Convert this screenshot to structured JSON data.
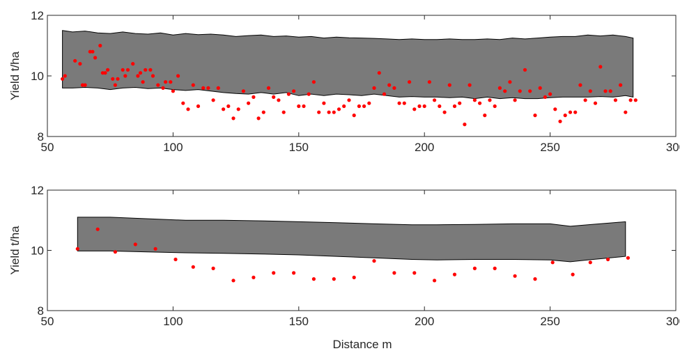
{
  "figure": {
    "xlabel": "Distance m"
  },
  "colors": {
    "band_fill": "#7a7a7a",
    "band_stroke": "#000000",
    "points": "#ff0000",
    "axis": "#262626"
  },
  "chart_data": [
    {
      "type": "scatter",
      "title": "",
      "xlabel": "",
      "ylabel": "Yield t/ha",
      "xlim": [
        50,
        300
      ],
      "ylim": [
        8,
        12
      ],
      "xticks": [
        "50",
        "100",
        "150",
        "200",
        "250",
        "300"
      ],
      "yticks": [
        "8",
        "10",
        "12"
      ],
      "grid": false,
      "band": {
        "x": [
          56,
          60,
          65,
          70,
          75,
          80,
          85,
          90,
          95,
          100,
          105,
          110,
          115,
          120,
          125,
          130,
          135,
          140,
          145,
          150,
          155,
          160,
          165,
          170,
          175,
          180,
          185,
          190,
          195,
          200,
          205,
          210,
          215,
          220,
          225,
          230,
          235,
          240,
          245,
          250,
          255,
          260,
          265,
          270,
          275,
          280,
          283
        ],
        "upper": [
          11.5,
          11.45,
          11.48,
          11.42,
          11.4,
          11.45,
          11.4,
          11.38,
          11.42,
          11.35,
          11.4,
          11.36,
          11.38,
          11.35,
          11.3,
          11.33,
          11.35,
          11.3,
          11.32,
          11.28,
          11.3,
          11.25,
          11.28,
          11.26,
          11.25,
          11.24,
          11.22,
          11.2,
          11.22,
          11.2,
          11.2,
          11.22,
          11.2,
          11.2,
          11.22,
          11.2,
          11.25,
          11.22,
          11.25,
          11.28,
          11.3,
          11.3,
          11.35,
          11.32,
          11.35,
          11.3,
          11.25
        ],
        "lower": [
          9.6,
          9.6,
          9.62,
          9.6,
          9.55,
          9.6,
          9.62,
          9.58,
          9.6,
          9.55,
          9.52,
          9.55,
          9.5,
          9.45,
          9.42,
          9.4,
          9.45,
          9.4,
          9.45,
          9.35,
          9.4,
          9.35,
          9.4,
          9.38,
          9.35,
          9.4,
          9.35,
          9.3,
          9.32,
          9.3,
          9.3,
          9.28,
          9.3,
          9.25,
          9.3,
          9.25,
          9.28,
          9.25,
          9.25,
          9.28,
          9.3,
          9.3,
          9.3,
          9.32,
          9.3,
          9.35,
          9.3
        ]
      },
      "points": {
        "x": [
          56,
          57,
          61,
          63,
          64,
          65,
          67,
          68,
          69,
          71,
          72,
          73,
          74,
          76,
          77,
          78,
          80,
          81,
          82,
          84,
          86,
          87,
          88,
          89,
          91,
          92,
          94,
          96,
          97,
          99,
          100,
          102,
          104,
          106,
          108,
          110,
          112,
          114,
          116,
          118,
          120,
          122,
          124,
          126,
          128,
          130,
          132,
          134,
          136,
          138,
          140,
          142,
          144,
          146,
          148,
          150,
          152,
          154,
          156,
          158,
          160,
          162,
          164,
          166,
          168,
          170,
          172,
          174,
          176,
          178,
          180,
          182,
          184,
          186,
          188,
          190,
          192,
          194,
          196,
          198,
          200,
          202,
          204,
          206,
          208,
          210,
          212,
          214,
          216,
          218,
          220,
          222,
          224,
          226,
          228,
          230,
          232,
          234,
          236,
          238,
          240,
          242,
          244,
          246,
          248,
          250,
          252,
          254,
          256,
          258,
          260,
          262,
          264,
          266,
          268,
          270,
          272,
          274,
          276,
          278,
          280,
          282,
          284
        ],
        "y": [
          9.9,
          10.0,
          10.5,
          10.4,
          9.7,
          9.7,
          10.8,
          10.8,
          10.6,
          11.0,
          10.1,
          10.1,
          10.2,
          9.9,
          9.7,
          9.9,
          10.2,
          10.0,
          10.2,
          10.4,
          10.0,
          10.1,
          9.8,
          10.2,
          10.2,
          10.0,
          9.7,
          9.6,
          9.8,
          9.8,
          9.5,
          10.0,
          9.1,
          8.9,
          9.7,
          9.0,
          9.6,
          9.6,
          9.2,
          9.6,
          8.9,
          9.0,
          8.6,
          8.9,
          9.5,
          9.1,
          9.3,
          8.6,
          8.8,
          9.6,
          9.3,
          9.2,
          8.8,
          9.4,
          9.5,
          9.0,
          9.0,
          9.4,
          9.8,
          8.8,
          9.1,
          8.8,
          8.8,
          8.9,
          9.0,
          9.2,
          8.7,
          9.0,
          9.0,
          9.1,
          9.6,
          10.1,
          9.4,
          9.7,
          9.6,
          9.1,
          9.1,
          9.8,
          8.9,
          9.0,
          9.0,
          9.8,
          9.2,
          9.0,
          8.8,
          9.7,
          9.0,
          9.1,
          8.4,
          9.7,
          9.2,
          9.1,
          8.7,
          9.2,
          9.0,
          9.6,
          9.5,
          9.8,
          9.2,
          9.5,
          10.2,
          9.5,
          8.7,
          9.6,
          9.3,
          9.4,
          8.9,
          8.5,
          8.7,
          8.8,
          8.8,
          9.7,
          9.2,
          9.5,
          9.1,
          10.3,
          9.5,
          9.5,
          9.2,
          9.7,
          8.8,
          9.2,
          9.2
        ]
      }
    },
    {
      "type": "scatter",
      "title": "",
      "xlabel": "Distance m",
      "ylabel": "Yield t/ha",
      "xlim": [
        50,
        300
      ],
      "ylim": [
        8,
        12
      ],
      "xticks": [
        "50",
        "100",
        "150",
        "200",
        "250",
        "300"
      ],
      "yticks": [
        "8",
        "10",
        "12"
      ],
      "grid": false,
      "band": {
        "x": [
          62,
          75,
          90,
          105,
          120,
          135,
          150,
          165,
          180,
          195,
          205,
          220,
          235,
          250,
          258,
          265,
          280
        ],
        "upper": [
          11.1,
          11.1,
          11.05,
          11.0,
          11.0,
          10.98,
          10.95,
          10.92,
          10.88,
          10.85,
          10.85,
          10.86,
          10.88,
          10.88,
          10.8,
          10.85,
          10.95
        ],
        "lower": [
          9.98,
          9.98,
          9.95,
          9.92,
          9.9,
          9.88,
          9.85,
          9.8,
          9.75,
          9.7,
          9.68,
          9.7,
          9.7,
          9.68,
          9.62,
          9.68,
          9.8
        ]
      },
      "points": {
        "x": [
          62,
          70,
          77,
          85,
          93,
          101,
          108,
          116,
          124,
          132,
          140,
          148,
          156,
          164,
          172,
          180,
          188,
          196,
          204,
          212,
          220,
          228,
          236,
          244,
          251,
          259,
          266,
          273,
          281
        ],
        "y": [
          10.05,
          10.7,
          9.95,
          10.2,
          10.05,
          9.7,
          9.45,
          9.4,
          9.0,
          9.1,
          9.25,
          9.25,
          9.05,
          9.05,
          9.1,
          9.65,
          9.25,
          9.25,
          9.0,
          9.2,
          9.4,
          9.4,
          9.15,
          9.05,
          9.6,
          9.2,
          9.6,
          9.7,
          9.75
        ]
      }
    }
  ]
}
